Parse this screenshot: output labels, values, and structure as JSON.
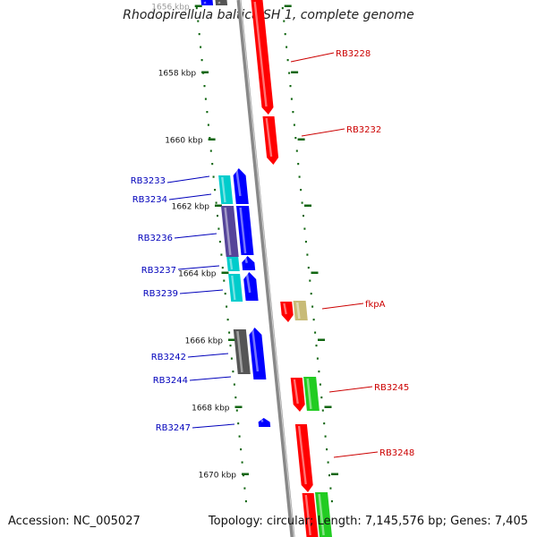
{
  "title": "Rhodopirellula baltica SH 1, complete genome",
  "accession_label": "Accession: NC_005027",
  "summary_label": "Topology: circular; Length: 7,145,576 bp; Genes: 7,405",
  "ticks": [
    "1656 kbp",
    "1658 kbp",
    "1660 kbp",
    "1662 kbp",
    "1664 kbp",
    "1666 kbp",
    "1668 kbp",
    "1670 kbp"
  ],
  "genes_left": [
    "RB3233",
    "RB3234",
    "RB3236",
    "RB3237",
    "RB3239",
    "RB3242",
    "RB3244",
    "RB3247"
  ],
  "genes_right": [
    "RB3228",
    "RB3232",
    "fkpA",
    "RB3245",
    "RB3248"
  ],
  "colors": {
    "forward": "#ff0000",
    "reverse": "#0000ff",
    "cyan": "#00cccc",
    "purple": "#554499",
    "gray": "#555555",
    "green": "#22cc22",
    "khaki": "#c8bb77",
    "tick": "#116611",
    "left_label": "#0000bb",
    "right_label": "#cc0000"
  }
}
